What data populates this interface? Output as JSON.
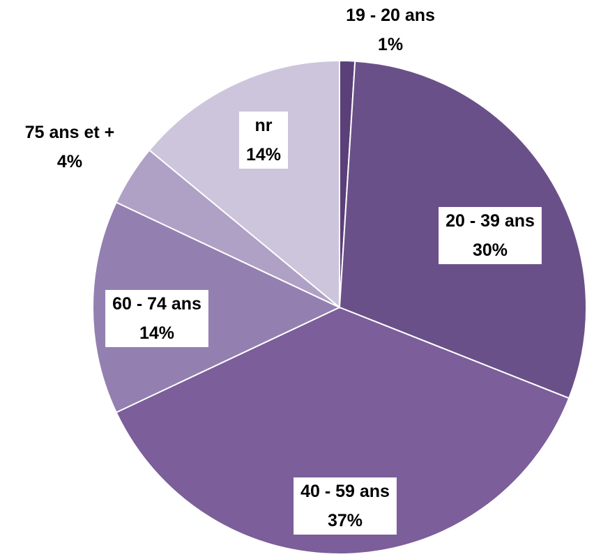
{
  "chart_data": {
    "type": "pie",
    "title": "",
    "start_angle_deg": 0,
    "direction": "clockwise",
    "legend": "none",
    "slices": [
      {
        "label": "19 - 20 ans",
        "value": 1,
        "value_label": "1%",
        "color": "#5a3f78"
      },
      {
        "label": "20 - 39 ans",
        "value": 30,
        "value_label": "30%",
        "color": "#6a5089"
      },
      {
        "label": "40 - 59 ans",
        "value": 37,
        "value_label": "37%",
        "color": "#7b5e9a"
      },
      {
        "label": "60 - 74 ans",
        "value": 14,
        "value_label": "14%",
        "color": "#9380b0"
      },
      {
        "label": "75 ans et +",
        "value": 4,
        "value_label": "4%",
        "color": "#afa1c5"
      },
      {
        "label": "nr",
        "value": 14,
        "value_label": "14%",
        "color": "#cdc5db"
      }
    ]
  }
}
